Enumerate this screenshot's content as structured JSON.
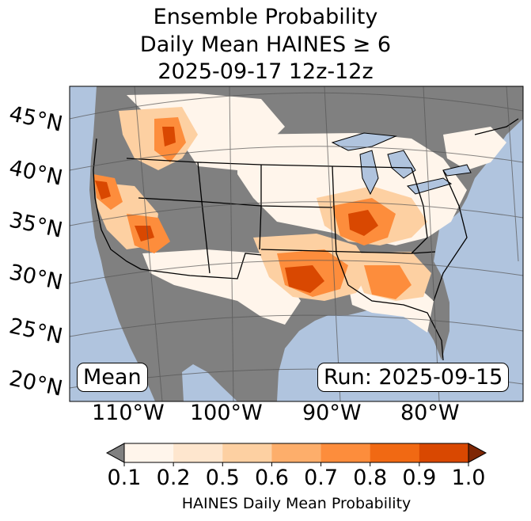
{
  "title": {
    "line1": "Ensemble Probability",
    "line2": "Daily Mean HAINES ≥ 6",
    "line3": "2025-09-17 12z-12z"
  },
  "map": {
    "lat_labels": [
      "45°N",
      "40°N",
      "35°N",
      "30°N",
      "25°N",
      "20°N"
    ],
    "lon_labels": [
      "110°W",
      "100°W",
      "90°W",
      "80°W"
    ],
    "stat_label": "Mean",
    "run_label": "Run: 2025-09-15",
    "colors": {
      "ocean": "#b0c4de",
      "no_data": "#808080",
      "lakes": "#b0c4de"
    }
  },
  "colorbar": {
    "ticks": [
      "0.1",
      "0.2",
      "0.5",
      "0.6",
      "0.7",
      "0.8",
      "0.9",
      "1.0"
    ],
    "label": "HAINES Daily Mean Probability",
    "under_color": "#808080",
    "over_color": "#7f2704",
    "colors": [
      "#fff5eb",
      "#fee6ce",
      "#fdd0a2",
      "#fdae6b",
      "#fd8d3c",
      "#f16913",
      "#d94801"
    ]
  }
}
